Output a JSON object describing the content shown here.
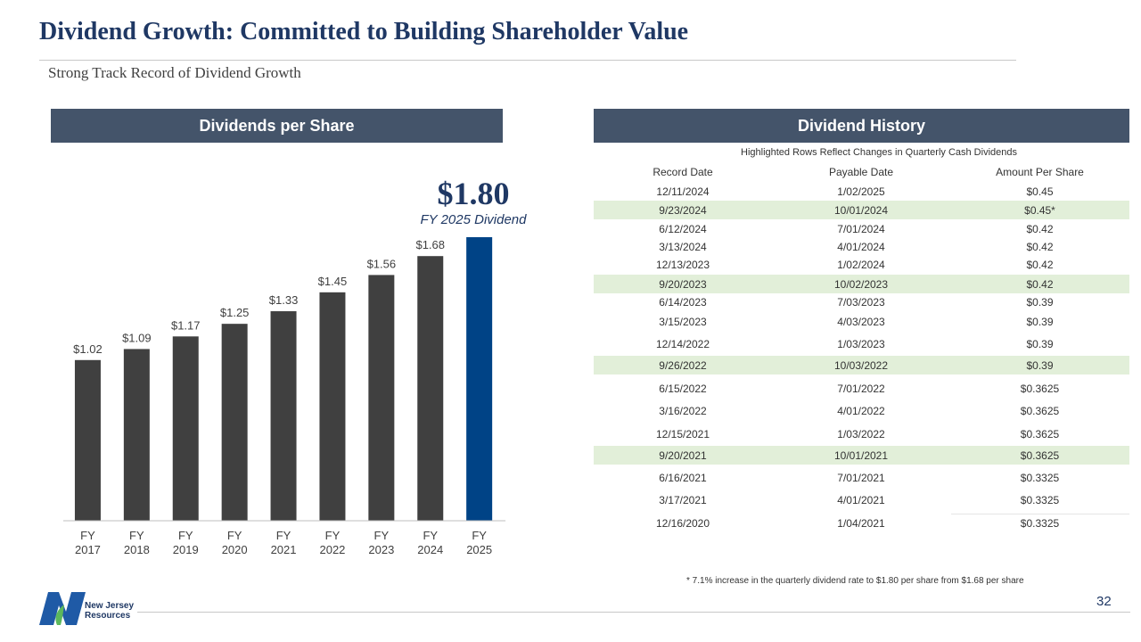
{
  "header": {
    "title": "Dividend Growth: Committed to Building Shareholder Value",
    "subtitle": "Strong Track Record of Dividend Growth"
  },
  "left_panel": {
    "heading": "Dividends per Share"
  },
  "right_panel": {
    "heading": "Dividend History",
    "note": "Highlighted Rows Reflect Changes in Quarterly Cash Dividends",
    "columns": [
      "Record Date",
      "Payable Date",
      "Amount Per Share"
    ],
    "rows": [
      {
        "record": "12/11/2024",
        "payable": "1/02/2025",
        "amount": "$0.45",
        "highlight": false
      },
      {
        "record": "9/23/2024",
        "payable": "10/01/2024",
        "amount": "$0.45*",
        "highlight": true
      },
      {
        "record": "6/12/2024",
        "payable": "7/01/2024",
        "amount": "$0.42",
        "highlight": false
      },
      {
        "record": "3/13/2024",
        "payable": "4/01/2024",
        "amount": "$0.42",
        "highlight": false
      },
      {
        "record": "12/13/2023",
        "payable": "1/02/2024",
        "amount": "$0.42",
        "highlight": false
      },
      {
        "record": "9/20/2023",
        "payable": "10/02/2023",
        "amount": "$0.42",
        "highlight": true
      },
      {
        "record": "6/14/2023",
        "payable": "7/03/2023",
        "amount": "$0.39",
        "highlight": false
      },
      {
        "record": "3/15/2023",
        "payable": "4/03/2023",
        "amount": "$0.39",
        "highlight": false
      },
      {
        "record": "12/14/2022",
        "payable": "1/03/2023",
        "amount": "$0.39",
        "highlight": false
      },
      {
        "record": "9/26/2022",
        "payable": "10/03/2022",
        "amount": "$0.39",
        "highlight": true
      },
      {
        "record": "6/15/2022",
        "payable": "7/01/2022",
        "amount": "$0.3625",
        "highlight": false
      },
      {
        "record": "3/16/2022",
        "payable": "4/01/2022",
        "amount": "$0.3625",
        "highlight": false
      },
      {
        "record": "12/15/2021",
        "payable": "1/03/2022",
        "amount": "$0.3625",
        "highlight": false
      },
      {
        "record": "9/20/2021",
        "payable": "10/01/2021",
        "amount": "$0.3625",
        "highlight": true
      },
      {
        "record": "6/16/2021",
        "payable": "7/01/2021",
        "amount": "$0.3325",
        "highlight": false
      },
      {
        "record": "3/17/2021",
        "payable": "4/01/2021",
        "amount": "$0.3325",
        "highlight": false
      },
      {
        "record": "12/16/2020",
        "payable": "1/04/2021",
        "amount": "$0.3325",
        "highlight": false
      }
    ],
    "footnote": "* 7.1% increase in the quarterly dividend rate to $1.80 per share from $1.68 per share"
  },
  "callout": {
    "value": "$1.80",
    "label": "FY 2025 Dividend"
  },
  "footer": {
    "page_number": "32",
    "logo_line1": "New Jersey",
    "logo_line2": "Resources"
  },
  "colors": {
    "bar": "#404040",
    "bar_highlight": "#004386",
    "header_bg": "#44546a",
    "row_highlight": "#e2efd9",
    "title": "#1f3864"
  },
  "chart_data": {
    "type": "bar",
    "title": "Dividends per Share",
    "categories": [
      [
        "FY",
        "2017"
      ],
      [
        "FY",
        "2018"
      ],
      [
        "FY",
        "2019"
      ],
      [
        "FY",
        "2020"
      ],
      [
        "FY",
        "2021"
      ],
      [
        "FY",
        "2022"
      ],
      [
        "FY",
        "2023"
      ],
      [
        "FY",
        "2024"
      ],
      [
        "FY",
        "2025"
      ]
    ],
    "values": [
      1.02,
      1.09,
      1.17,
      1.25,
      1.33,
      1.45,
      1.56,
      1.68,
      1.8
    ],
    "labels": [
      "$1.02",
      "$1.09",
      "$1.17",
      "$1.25",
      "$1.33",
      "$1.45",
      "$1.56",
      "$1.68",
      ""
    ],
    "highlight_index": 8,
    "ylim": [
      0,
      1.8
    ],
    "grid": false,
    "xlabel": "",
    "ylabel": ""
  }
}
